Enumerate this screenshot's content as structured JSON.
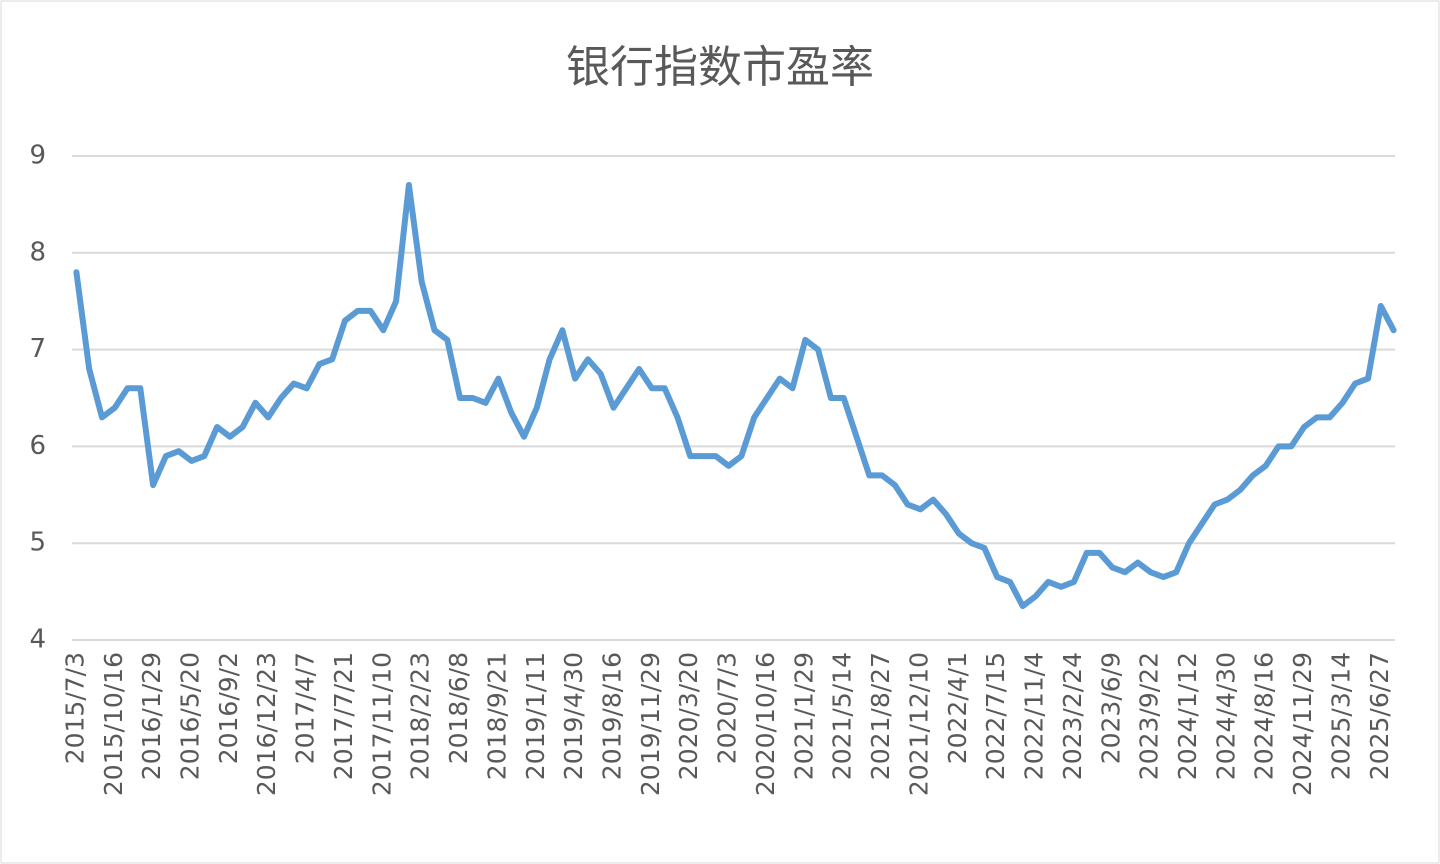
{
  "chart_data": {
    "type": "line",
    "title": "银行指数市盈率",
    "categories": [
      "2015/7/3",
      null,
      null,
      "2015/10/16",
      null,
      null,
      "2016/1/29",
      null,
      null,
      "2016/5/20",
      null,
      null,
      "2016/9/2",
      null,
      null,
      "2016/12/23",
      null,
      null,
      "2017/4/7",
      null,
      null,
      "2017/7/21",
      null,
      null,
      "2017/11/10",
      null,
      null,
      "2018/2/23",
      null,
      null,
      "2018/6/8",
      null,
      null,
      "2018/9/21",
      null,
      null,
      "2019/1/11",
      null,
      null,
      "2019/4/30",
      null,
      null,
      "2019/8/16",
      null,
      null,
      "2019/11/29",
      null,
      null,
      "2020/3/20",
      null,
      null,
      "2020/7/3",
      null,
      null,
      "2020/10/16",
      null,
      null,
      "2021/1/29",
      null,
      null,
      "2021/5/14",
      null,
      null,
      "2021/8/27",
      null,
      null,
      "2021/12/10",
      null,
      null,
      "2022/4/1",
      null,
      null,
      "2022/7/15",
      null,
      null,
      "2022/11/4",
      null,
      null,
      "2023/2/24",
      null,
      null,
      "2023/6/9",
      null,
      null,
      "2023/9/22",
      null,
      null,
      "2024/1/12",
      null,
      null,
      "2024/4/30",
      null,
      null,
      "2024/8/16",
      null,
      null,
      "2024/11/29",
      null,
      null,
      "2025/3/14",
      null,
      null,
      "2025/6/27",
      null
    ],
    "values": [
      7.8,
      6.8,
      6.3,
      6.4,
      6.6,
      6.6,
      5.6,
      5.9,
      5.95,
      5.85,
      5.9,
      6.2,
      6.1,
      6.2,
      6.45,
      6.3,
      6.5,
      6.65,
      6.6,
      6.85,
      6.9,
      7.3,
      7.4,
      7.4,
      7.2,
      7.5,
      8.7,
      7.7,
      7.2,
      7.1,
      6.5,
      6.5,
      6.45,
      6.7,
      6.35,
      6.1,
      6.4,
      6.9,
      7.2,
      6.7,
      6.9,
      6.75,
      6.4,
      6.6,
      6.8,
      6.6,
      6.6,
      6.3,
      5.9,
      5.9,
      5.9,
      5.8,
      5.9,
      6.3,
      6.5,
      6.7,
      6.6,
      7.1,
      7.0,
      6.5,
      6.5,
      6.1,
      5.7,
      5.7,
      5.6,
      5.4,
      5.35,
      5.45,
      5.3,
      5.1,
      5.0,
      4.95,
      4.65,
      4.6,
      4.35,
      4.45,
      4.6,
      4.55,
      4.6,
      4.9,
      4.9,
      4.75,
      4.7,
      4.8,
      4.7,
      4.65,
      4.7,
      5.0,
      5.2,
      5.4,
      5.45,
      5.55,
      5.7,
      5.8,
      6.0,
      6.0,
      6.2,
      6.3,
      6.3,
      6.45,
      6.65,
      6.7,
      7.45,
      7.2
    ],
    "color": "#5b9bd5",
    "ylim": [
      4,
      9
    ],
    "yticks": [
      4,
      5,
      6,
      7,
      8,
      9
    ],
    "grid": true
  }
}
